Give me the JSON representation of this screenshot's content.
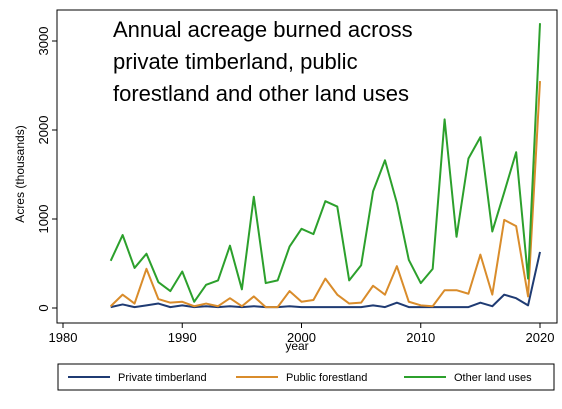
{
  "chart_data": {
    "type": "line",
    "title_lines": [
      "Annual acreage burned across",
      "private timberland, public",
      "forestland and other land uses"
    ],
    "xlabel": "year",
    "ylabel": "Acres (thousands)",
    "xlim": [
      1980,
      2020
    ],
    "ylim": [
      0,
      3000
    ],
    "xticks": [
      1980,
      1990,
      2000,
      2010,
      2020
    ],
    "yticks": [
      0,
      1000,
      2000,
      3000
    ],
    "grid": false,
    "legend_position": "bottom",
    "x": [
      1984,
      1985,
      1986,
      1987,
      1988,
      1989,
      1990,
      1991,
      1992,
      1993,
      1994,
      1995,
      1996,
      1997,
      1998,
      1999,
      2000,
      2001,
      2002,
      2003,
      2004,
      2005,
      2006,
      2007,
      2008,
      2009,
      2010,
      2011,
      2012,
      2013,
      2014,
      2015,
      2016,
      2017,
      2018,
      2019,
      2020
    ],
    "series": [
      {
        "name": "Private timberland",
        "color": "#1f3b73",
        "values": [
          10,
          40,
          10,
          30,
          50,
          10,
          30,
          10,
          20,
          10,
          20,
          10,
          20,
          10,
          10,
          20,
          10,
          10,
          10,
          10,
          10,
          10,
          30,
          10,
          60,
          10,
          10,
          10,
          10,
          10,
          10,
          60,
          20,
          150,
          110,
          30,
          630
        ]
      },
      {
        "name": "Public forestland",
        "color": "#d98c2b",
        "values": [
          20,
          150,
          50,
          440,
          100,
          60,
          70,
          20,
          50,
          20,
          110,
          20,
          130,
          10,
          10,
          190,
          70,
          90,
          330,
          150,
          50,
          60,
          250,
          150,
          470,
          70,
          30,
          20,
          200,
          200,
          160,
          600,
          150,
          990,
          920,
          130,
          2550
        ]
      },
      {
        "name": "Other land uses",
        "color": "#2ca02c",
        "values": [
          530,
          820,
          450,
          610,
          290,
          190,
          410,
          70,
          260,
          310,
          700,
          210,
          1250,
          280,
          310,
          690,
          890,
          830,
          1200,
          1140,
          310,
          480,
          1310,
          1660,
          1180,
          540,
          280,
          440,
          2120,
          800,
          1680,
          1920,
          860,
          1300,
          1750,
          330,
          3200
        ]
      }
    ]
  }
}
